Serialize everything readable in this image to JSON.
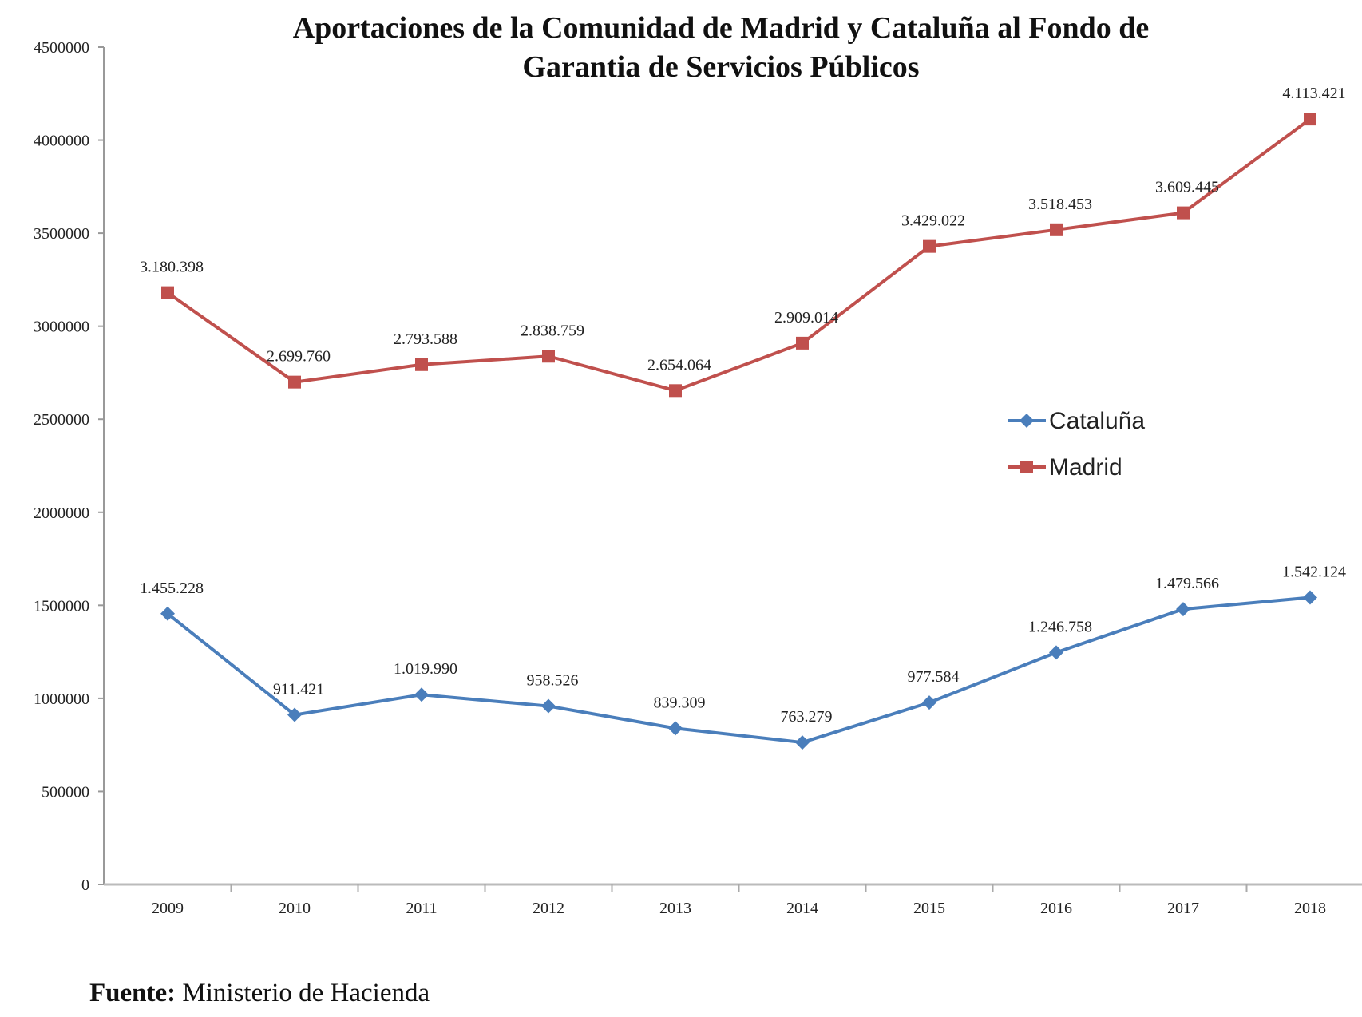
{
  "chart_data": {
    "type": "line",
    "title": [
      "Aportaciones de la Comunidad de Madrid y Cataluña al Fondo de",
      "Garantia de Servicios Públicos"
    ],
    "xlabel": "",
    "ylabel": "",
    "categories": [
      "2009",
      "2010",
      "2011",
      "2012",
      "2013",
      "2014",
      "2015",
      "2016",
      "2017",
      "2018"
    ],
    "ylim": [
      0,
      4500000
    ],
    "yticks": [
      0,
      500000,
      1000000,
      1500000,
      2000000,
      2500000,
      3000000,
      3500000,
      4000000,
      4500000
    ],
    "grid": false,
    "legend_position": "right-center",
    "series": [
      {
        "name": "Cataluña",
        "color": "#4a7ebb",
        "marker": "diamond",
        "values": [
          1455228,
          911421,
          1019990,
          958526,
          839309,
          763279,
          977584,
          1246758,
          1479566,
          1542124
        ],
        "labels": [
          "1.455.228",
          "911.421",
          "1.019.990",
          "958.526",
          "839.309",
          "763.279",
          "977.584",
          "1.246.758",
          "1.479.566",
          "1.542.124"
        ]
      },
      {
        "name": "Madrid",
        "color": "#c0504d",
        "marker": "square",
        "values": [
          3180398,
          2699760,
          2793588,
          2838759,
          2654064,
          2909014,
          3429022,
          3518453,
          3609445,
          4113421
        ],
        "labels": [
          "3.180.398",
          "2.699.760",
          "2.793.588",
          "2.838.759",
          "2.654.064",
          "2.909.014",
          "3.429.022",
          "3.518.453",
          "3.609.445",
          "4.113.421"
        ]
      }
    ]
  },
  "source": {
    "label": "Fuente:",
    "text": "Ministerio de Hacienda"
  }
}
